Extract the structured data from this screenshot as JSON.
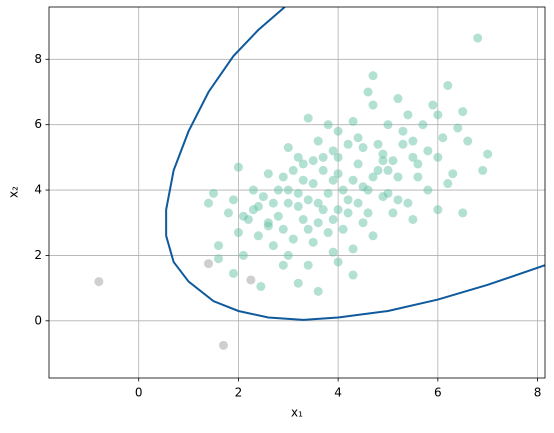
{
  "chart_data": {
    "type": "scatter",
    "x_label": "x₁",
    "y_label": "x₂",
    "xlim": [
      -1.8,
      8.15
    ],
    "ylim": [
      -1.75,
      9.6
    ],
    "xticks": [
      0,
      2,
      4,
      6,
      8
    ],
    "yticks": [
      0,
      2,
      4,
      6,
      8
    ],
    "grid": true,
    "series": [
      {
        "type": "scatter",
        "color": "#66c2a5",
        "x": [
          3.0,
          3.2,
          3.5,
          3.8,
          4.0,
          4.2,
          4.5,
          3.6,
          3.3,
          4.8,
          5.1,
          2.8,
          2.6,
          3.9,
          4.1,
          4.4,
          3.1,
          5.3,
          5.6,
          2.4,
          3.7,
          4.6,
          3.4,
          4.9,
          5.4,
          2.9,
          3.6,
          4.3,
          5.0,
          5.8,
          6.1,
          6.3,
          2.2,
          2.0,
          1.8,
          1.5,
          1.4,
          2.0,
          2.6,
          3.0,
          3.4,
          3.8,
          4.7,
          5.2,
          4.6,
          5.7,
          5.9,
          6.2,
          6.5,
          6.6,
          7.0,
          6.9,
          6.2,
          6.5,
          6.0,
          5.5,
          5.1,
          4.7,
          4.3,
          3.9,
          3.5,
          3.0,
          2.7,
          2.4,
          2.1,
          1.6,
          1.6,
          1.9,
          2.45,
          3.2,
          3.6,
          4.3,
          4.0,
          3.4,
          2.9,
          4.7,
          6.8,
          4.2,
          3.7,
          3.2,
          3.9,
          4.1,
          4.4,
          4.0,
          3.5,
          3.0,
          2.8,
          3.3,
          3.8,
          4.5,
          5.0,
          5.2,
          5.5,
          4.8,
          4.2,
          3.7,
          3.1,
          2.5,
          2.3,
          2.9,
          3.4,
          4.0,
          4.6,
          5.0,
          5.6,
          6.0,
          5.3,
          4.9,
          4.5,
          3.6,
          3.3,
          2.7,
          4.3,
          4.7,
          5.2,
          5.8,
          6.4,
          6.0,
          5.4,
          4.0,
          3.2,
          2.3,
          1.9,
          2.1,
          2.6,
          3.9,
          4.4,
          4.9,
          5.5
        ],
        "values": [
          4.0,
          3.5,
          4.2,
          3.9,
          4.5,
          3.7,
          4.1,
          3.0,
          4.8,
          4.6,
          4.9,
          3.2,
          2.9,
          5.2,
          2.8,
          5.6,
          2.5,
          5.4,
          4.4,
          3.5,
          4.6,
          3.3,
          3.7,
          3.8,
          3.6,
          4.4,
          5.5,
          6.1,
          6.0,
          5.2,
          5.6,
          4.5,
          3.1,
          2.7,
          3.3,
          3.9,
          3.6,
          4.7,
          4.5,
          5.3,
          6.2,
          6.0,
          6.6,
          6.8,
          7.0,
          6.0,
          6.6,
          7.2,
          6.4,
          5.5,
          5.1,
          4.6,
          4.2,
          3.3,
          3.4,
          3.1,
          3.3,
          2.6,
          2.2,
          2.1,
          2.4,
          2.0,
          2.3,
          2.6,
          2.0,
          2.3,
          1.9,
          1.45,
          1.05,
          1.15,
          0.9,
          1.4,
          1.8,
          1.7,
          1.7,
          7.5,
          8.65,
          3.3,
          3.4,
          3.9,
          4.3,
          4.0,
          4.8,
          5.0,
          4.9,
          3.6,
          4.0,
          3.1,
          2.7,
          3.0,
          3.9,
          4.4,
          5.0,
          5.4,
          5.4,
          5.0,
          4.6,
          3.8,
          3.4,
          2.8,
          2.8,
          3.4,
          4.0,
          4.6,
          4.8,
          5.0,
          5.8,
          5.1,
          5.3,
          3.6,
          4.3,
          3.6,
          4.3,
          4.4,
          3.7,
          4.0,
          5.9,
          6.3,
          6.3,
          5.8,
          5.0,
          4.0,
          3.7,
          3.2,
          3.0,
          3.1,
          3.6,
          4.9,
          5.5
        ]
      },
      {
        "type": "scatter",
        "color": "#a0a0a0",
        "x": [
          -0.8,
          1.4,
          1.7,
          2.25
        ],
        "values": [
          1.2,
          1.75,
          -0.75,
          1.25
        ]
      },
      {
        "type": "line",
        "color": "#0f5a9c",
        "x": [
          2.93,
          2.4,
          1.9,
          1.4,
          1.0,
          0.7,
          0.55,
          0.55,
          0.7,
          1.0,
          1.5,
          2.0,
          2.6,
          3.3,
          4.0,
          5.0,
          6.0,
          7.0,
          8.15
        ],
        "values": [
          9.6,
          8.9,
          8.1,
          7.0,
          5.8,
          4.6,
          3.4,
          2.6,
          1.8,
          1.2,
          0.6,
          0.3,
          0.1,
          0.03,
          0.1,
          0.3,
          0.65,
          1.1,
          1.7
        ]
      }
    ]
  }
}
